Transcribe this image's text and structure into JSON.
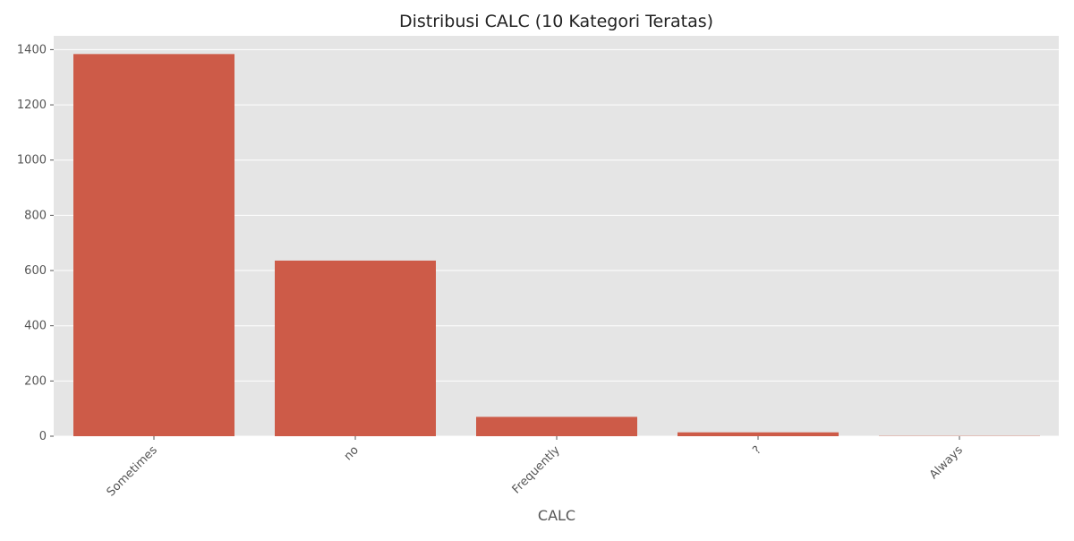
{
  "chart_data": {
    "type": "bar",
    "title": "Distribusi CALC (10 Kategori Teratas)",
    "xlabel": "CALC",
    "ylabel": "",
    "categories": [
      "Sometimes",
      "no",
      "Frequently",
      "?",
      "Always"
    ],
    "values": [
      1384,
      636,
      70,
      14,
      1
    ],
    "ylim": [
      0,
      1450
    ],
    "yticks": [
      0,
      200,
      400,
      600,
      800,
      1000,
      1200,
      1400
    ],
    "grid": true,
    "legend": "none",
    "colors": {
      "bar": "#cd5b48",
      "plot_background": "#e5e5e5",
      "grid": "#ffffff",
      "text": "#555555",
      "title": "#222222"
    }
  }
}
